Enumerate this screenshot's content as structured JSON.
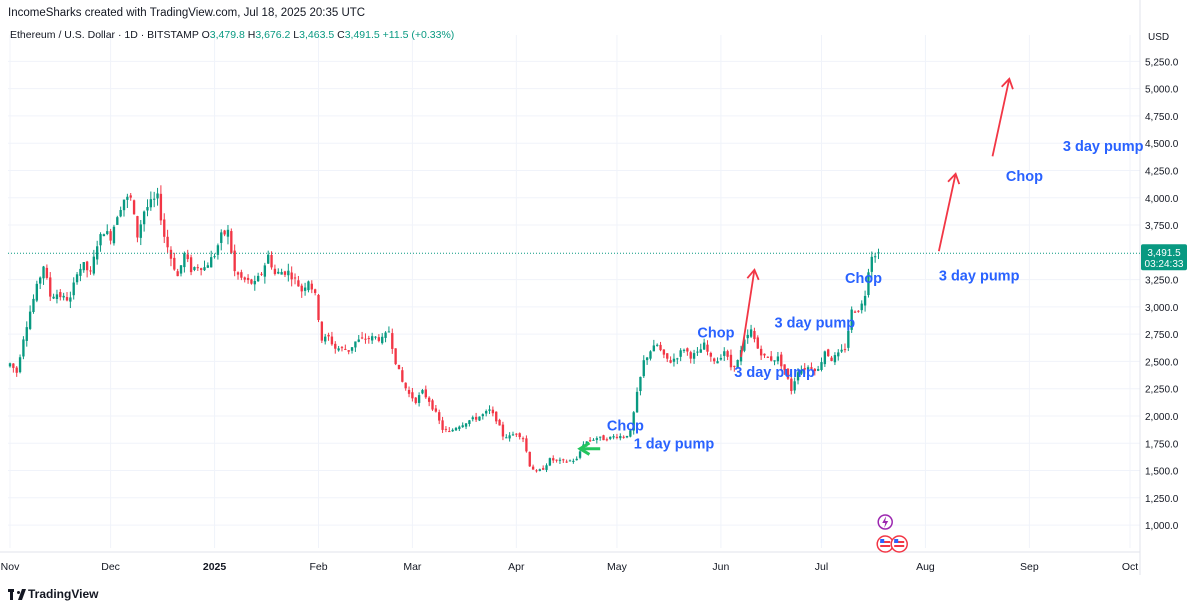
{
  "header": {
    "credit": "IncomeSharks created with TradingView.com, Jul 18, 2025 20:35 UTC"
  },
  "legend": {
    "symbol": "Ethereum / U.S. Dollar · 1D · BITSTAMP",
    "o_label": "O",
    "o_value": "3,479.8",
    "h_label": "H",
    "h_value": "3,676.2",
    "l_label": "L",
    "l_value": "3,463.5",
    "c_label": "C",
    "c_value": "3,491.5",
    "change": "+11.5 (+0.33%)"
  },
  "footer": {
    "brand": "TradingView"
  },
  "colors": {
    "up": "#089981",
    "down": "#f23645",
    "annotation": "#2962ff",
    "arrow_red": "#f23645",
    "arrow_green": "#22c55e",
    "price_tag": "#089981"
  },
  "chart_data": {
    "type": "candlestick",
    "currency_label": "USD",
    "y_ticks": [
      "1,000.0",
      "1,250.0",
      "1,500.0",
      "1,750.0",
      "2,000.0",
      "2,250.0",
      "2,500.0",
      "2,750.0",
      "3,000.0",
      "3,250.0",
      "3,750.0",
      "4,000.0",
      "4,250.0",
      "4,500.0",
      "4,750.0",
      "5,000.0",
      "5,250.0"
    ],
    "y_tick_values": [
      1000,
      1250,
      1500,
      1750,
      2000,
      2250,
      2500,
      2750,
      3000,
      3250,
      3750,
      4000,
      4250,
      4500,
      4750,
      5000,
      5250
    ],
    "ylim": [
      790,
      5400
    ],
    "x_labels": [
      {
        "label": "Nov",
        "date": "2024-11-01",
        "bold": false
      },
      {
        "label": "Dec",
        "date": "2024-12-01",
        "bold": false
      },
      {
        "label": "2025",
        "date": "2025-01-01",
        "bold": true
      },
      {
        "label": "Feb",
        "date": "2025-02-01",
        "bold": false
      },
      {
        "label": "Mar",
        "date": "2025-03-01",
        "bold": false
      },
      {
        "label": "Apr",
        "date": "2025-04-01",
        "bold": false
      },
      {
        "label": "May",
        "date": "2025-05-01",
        "bold": false
      },
      {
        "label": "Jun",
        "date": "2025-06-01",
        "bold": false
      },
      {
        "label": "Jul",
        "date": "2025-07-01",
        "bold": false
      },
      {
        "label": "Aug",
        "date": "2025-08-01",
        "bold": false
      },
      {
        "label": "Sep",
        "date": "2025-09-01",
        "bold": false
      },
      {
        "label": "Oct",
        "date": "2025-10-01",
        "bold": false
      }
    ],
    "last_price": {
      "value": 3491.5,
      "label": "3,491.5",
      "countdown": "03:24:33"
    },
    "closes": [
      [
        "2024-11-01",
        2520
      ],
      [
        "2024-11-04",
        2400
      ],
      [
        "2024-11-06",
        2720
      ],
      [
        "2024-11-08",
        2960
      ],
      [
        "2024-11-10",
        3180
      ],
      [
        "2024-11-12",
        3380
      ],
      [
        "2024-11-14",
        3100
      ],
      [
        "2024-11-16",
        3120
      ],
      [
        "2024-11-18",
        3080
      ],
      [
        "2024-11-20",
        3070
      ],
      [
        "2024-11-22",
        3330
      ],
      [
        "2024-11-24",
        3380
      ],
      [
        "2024-11-26",
        3300
      ],
      [
        "2024-11-28",
        3580
      ],
      [
        "2024-11-30",
        3700
      ],
      [
        "2024-12-02",
        3640
      ],
      [
        "2024-12-04",
        3850
      ],
      [
        "2024-12-06",
        3990
      ],
      [
        "2024-12-08",
        3990
      ],
      [
        "2024-12-10",
        3650
      ],
      [
        "2024-12-12",
        3880
      ],
      [
        "2024-12-14",
        3950
      ],
      [
        "2024-12-16",
        4000
      ],
      [
        "2024-12-18",
        3650
      ],
      [
        "2024-12-20",
        3450
      ],
      [
        "2024-12-22",
        3280
      ],
      [
        "2024-12-24",
        3480
      ],
      [
        "2024-12-26",
        3340
      ],
      [
        "2024-12-28",
        3380
      ],
      [
        "2024-12-30",
        3360
      ],
      [
        "2025-01-02",
        3480
      ],
      [
        "2025-01-04",
        3650
      ],
      [
        "2025-01-06",
        3690
      ],
      [
        "2025-01-08",
        3320
      ],
      [
        "2025-01-10",
        3260
      ],
      [
        "2025-01-12",
        3230
      ],
      [
        "2025-01-14",
        3210
      ],
      [
        "2025-01-16",
        3310
      ],
      [
        "2025-01-18",
        3470
      ],
      [
        "2025-01-20",
        3300
      ],
      [
        "2025-01-22",
        3320
      ],
      [
        "2025-01-24",
        3320
      ],
      [
        "2025-01-26",
        3250
      ],
      [
        "2025-01-28",
        3150
      ],
      [
        "2025-01-30",
        3250
      ],
      [
        "2025-02-01",
        3100
      ],
      [
        "2025-02-03",
        2700
      ],
      [
        "2025-02-05",
        2720
      ],
      [
        "2025-02-07",
        2620
      ],
      [
        "2025-02-09",
        2620
      ],
      [
        "2025-02-11",
        2600
      ],
      [
        "2025-02-13",
        2680
      ],
      [
        "2025-02-15",
        2700
      ],
      [
        "2025-02-17",
        2710
      ],
      [
        "2025-02-19",
        2720
      ],
      [
        "2025-02-21",
        2700
      ],
      [
        "2025-02-23",
        2780
      ],
      [
        "2025-02-25",
        2500
      ],
      [
        "2025-02-27",
        2310
      ],
      [
        "2025-03-01",
        2200
      ],
      [
        "2025-03-03",
        2140
      ],
      [
        "2025-03-05",
        2220
      ],
      [
        "2025-03-07",
        2140
      ],
      [
        "2025-03-09",
        2020
      ],
      [
        "2025-03-11",
        1880
      ],
      [
        "2025-03-13",
        1850
      ],
      [
        "2025-03-15",
        1900
      ],
      [
        "2025-03-17",
        1930
      ],
      [
        "2025-03-19",
        1960
      ],
      [
        "2025-03-21",
        1980
      ],
      [
        "2025-03-23",
        2010
      ],
      [
        "2025-03-25",
        2050
      ],
      [
        "2025-03-27",
        1970
      ],
      [
        "2025-03-29",
        1820
      ],
      [
        "2025-03-31",
        1810
      ],
      [
        "2025-04-02",
        1850
      ],
      [
        "2025-04-04",
        1800
      ],
      [
        "2025-04-06",
        1550
      ],
      [
        "2025-04-08",
        1480
      ],
      [
        "2025-04-10",
        1520
      ],
      [
        "2025-04-12",
        1600
      ],
      [
        "2025-04-14",
        1590
      ],
      [
        "2025-04-16",
        1580
      ],
      [
        "2025-04-18",
        1590
      ],
      [
        "2025-04-20",
        1600
      ],
      [
        "2025-04-22",
        1750
      ],
      [
        "2025-04-24",
        1780
      ],
      [
        "2025-04-26",
        1800
      ],
      [
        "2025-04-28",
        1790
      ],
      [
        "2025-04-30",
        1800
      ],
      [
        "2025-05-02",
        1820
      ],
      [
        "2025-05-04",
        1810
      ],
      [
        "2025-05-06",
        1850
      ],
      [
        "2025-05-08",
        2200
      ],
      [
        "2025-05-10",
        2500
      ],
      [
        "2025-05-12",
        2600
      ],
      [
        "2025-05-14",
        2650
      ],
      [
        "2025-05-16",
        2540
      ],
      [
        "2025-05-18",
        2500
      ],
      [
        "2025-05-20",
        2550
      ],
      [
        "2025-05-22",
        2620
      ],
      [
        "2025-05-24",
        2550
      ],
      [
        "2025-05-26",
        2570
      ],
      [
        "2025-05-28",
        2650
      ],
      [
        "2025-05-30",
        2520
      ],
      [
        "2025-06-01",
        2510
      ],
      [
        "2025-06-03",
        2600
      ],
      [
        "2025-06-05",
        2450
      ],
      [
        "2025-06-07",
        2500
      ],
      [
        "2025-06-09",
        2680
      ],
      [
        "2025-06-11",
        2780
      ],
      [
        "2025-06-13",
        2620
      ],
      [
        "2025-06-15",
        2540
      ],
      [
        "2025-06-17",
        2520
      ],
      [
        "2025-06-19",
        2530
      ],
      [
        "2025-06-21",
        2420
      ],
      [
        "2025-06-23",
        2240
      ],
      [
        "2025-06-25",
        2420
      ],
      [
        "2025-06-27",
        2440
      ],
      [
        "2025-06-29",
        2450
      ],
      [
        "2025-07-01",
        2420
      ],
      [
        "2025-07-03",
        2600
      ],
      [
        "2025-07-05",
        2520
      ],
      [
        "2025-07-07",
        2560
      ],
      [
        "2025-07-09",
        2620
      ],
      [
        "2025-07-11",
        2960
      ],
      [
        "2025-07-13",
        2980
      ],
      [
        "2025-07-14",
        3020
      ],
      [
        "2025-07-15",
        3120
      ],
      [
        "2025-07-16",
        3350
      ],
      [
        "2025-07-17",
        3480
      ],
      [
        "2025-07-18",
        3491.5
      ]
    ],
    "annotations": [
      {
        "text": "Chop",
        "date": "2025-04-28",
        "price": 1865
      },
      {
        "text": "1 day pump",
        "date": "2025-05-06",
        "price": 1700
      },
      {
        "text": "Chop",
        "date": "2025-05-25",
        "price": 2720
      },
      {
        "text": "3 day pump",
        "date": "2025-06-05",
        "price": 2355
      },
      {
        "text": "3 day pump",
        "date": "2025-06-17",
        "price": 2810
      },
      {
        "text": "Chop",
        "date": "2025-07-08",
        "price": 3220
      },
      {
        "text": "3 day pump",
        "date": "2025-08-05",
        "price": 3240
      },
      {
        "text": "Chop",
        "date": "2025-08-25",
        "price": 4155
      },
      {
        "text": "3 day pump",
        "date": "2025-09-11",
        "price": 4430
      }
    ],
    "arrows": [
      {
        "from": [
          "2025-06-07",
          2540
        ],
        "to": [
          "2025-06-11",
          3340
        ],
        "color": "red"
      },
      {
        "from": [
          "2025-08-05",
          3510
        ],
        "to": [
          "2025-08-10",
          4220
        ],
        "color": "red"
      },
      {
        "from": [
          "2025-08-21",
          4380
        ],
        "to": [
          "2025-08-26",
          5090
        ],
        "color": "red"
      },
      {
        "from": [
          "2025-04-26",
          1700
        ],
        "to": [
          "2025-04-20",
          1700
        ],
        "color": "green"
      }
    ]
  }
}
